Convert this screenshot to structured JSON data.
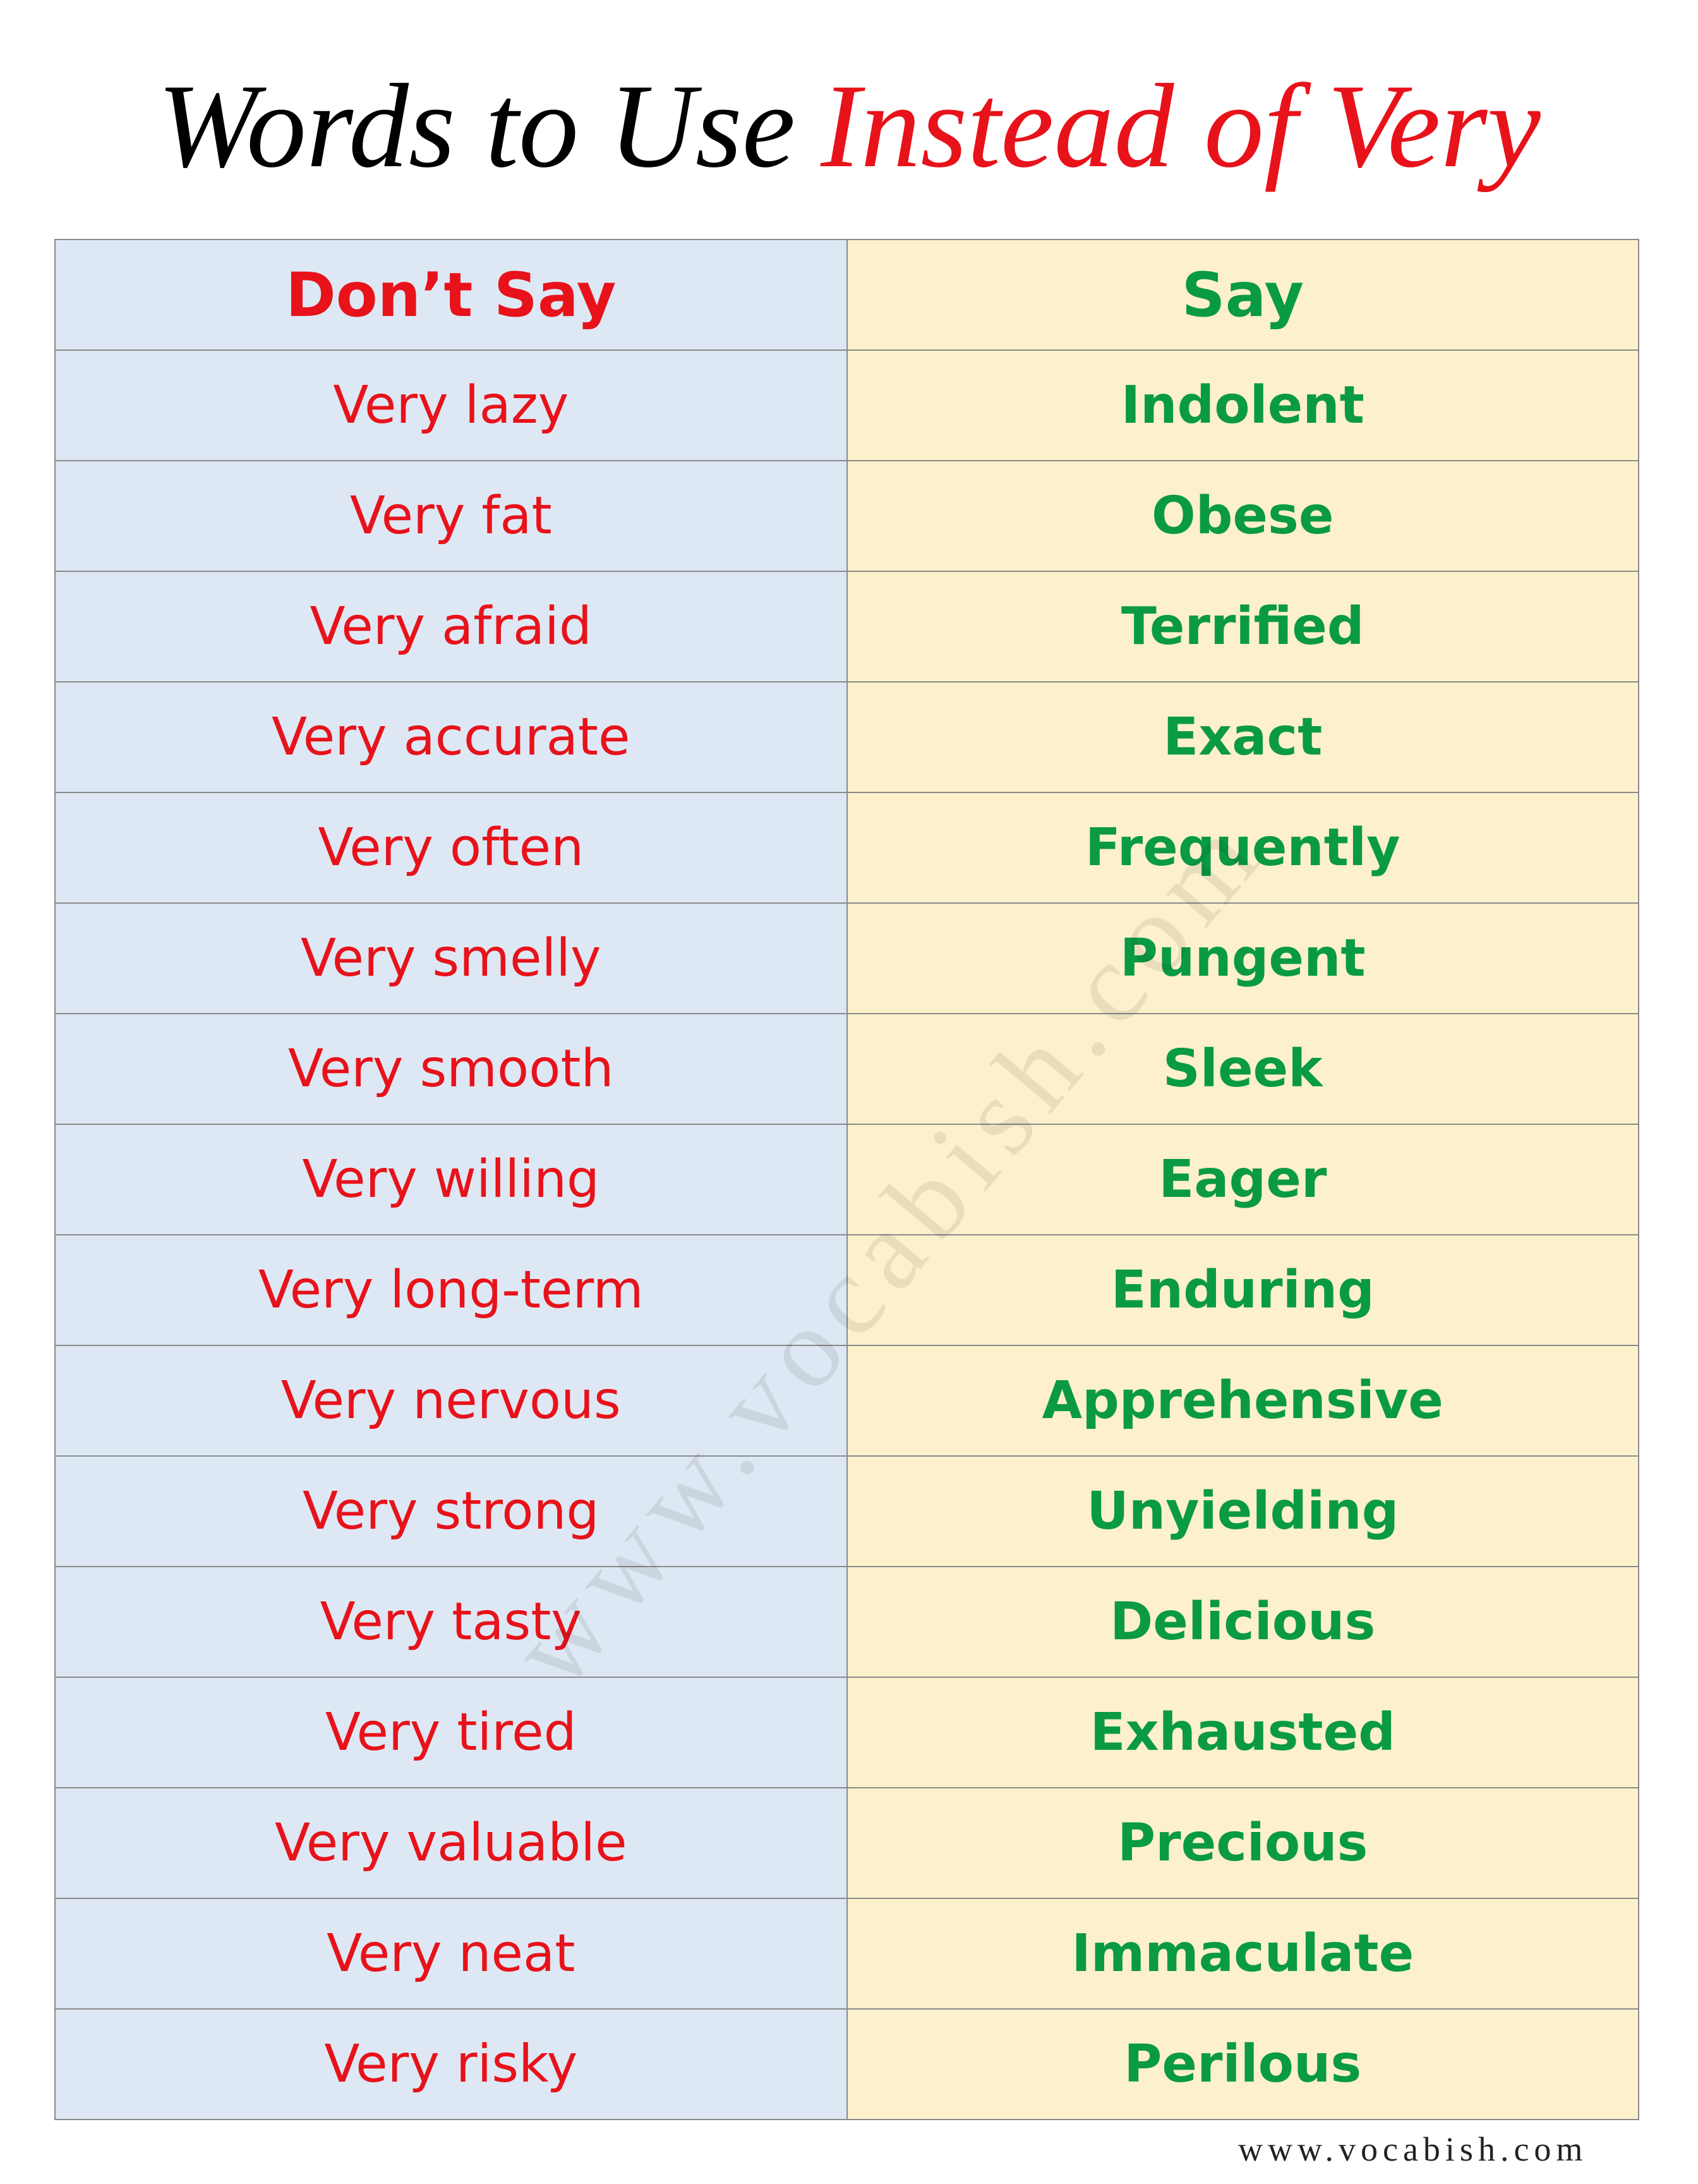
{
  "title": {
    "plain": "Words to Use",
    "highlight": "Instead of Very"
  },
  "table": {
    "headers": [
      "Don’t Say",
      "Say"
    ],
    "rows": [
      [
        "Very lazy",
        "Indolent"
      ],
      [
        "Very fat",
        "Obese"
      ],
      [
        "Very afraid",
        "Terrified"
      ],
      [
        "Very accurate",
        "Exact"
      ],
      [
        "Very often",
        "Frequently"
      ],
      [
        "Very smelly",
        "Pungent"
      ],
      [
        "Very smooth",
        "Sleek"
      ],
      [
        "Very willing",
        "Eager"
      ],
      [
        "Very long-term",
        "Enduring"
      ],
      [
        "Very nervous",
        "Apprehensive"
      ],
      [
        "Very strong",
        "Unyielding"
      ],
      [
        "Very tasty",
        "Delicious"
      ],
      [
        "Very tired",
        "Exhausted"
      ],
      [
        "Very valuable",
        "Precious"
      ],
      [
        "Very neat",
        "Immaculate"
      ],
      [
        "Very risky",
        "Perilous"
      ]
    ]
  },
  "watermark": "www.vocabish.com",
  "footer": "www.vocabish.com"
}
